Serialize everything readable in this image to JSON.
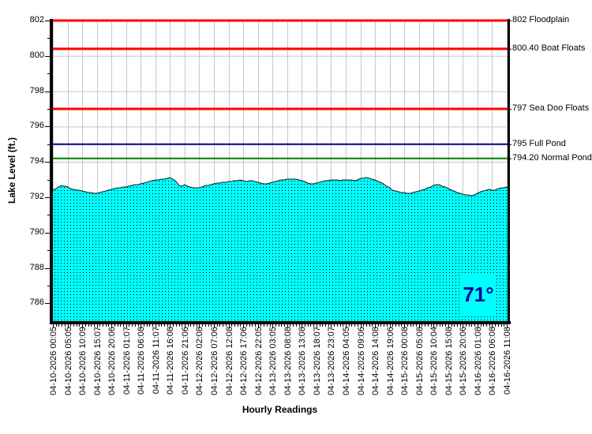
{
  "chart_data": {
    "type": "area",
    "title": "",
    "xlabel": "Hourly Readings",
    "ylabel": "Lake Level (ft.)",
    "ylim": [
      785,
      802
    ],
    "grid": true,
    "legend": "none",
    "x_total_hours": 155,
    "x_tick_labels": [
      "04-10-2026 00:05",
      "04-10-2026 05:05",
      "04-10-2026 10:09",
      "04-10-2026 15:07",
      "04-10-2026 20:06",
      "04-11-2026 01:07",
      "04-11-2026 06:08",
      "04-11-2026 11:07",
      "04-11-2026 16:08",
      "04-11-2026 21:06",
      "04-12-2026 02:08",
      "04-12-2026 07:06",
      "04-12-2026 12:08",
      "04-12-2026 17:06",
      "04-12-2026 22:05",
      "04-13-2026 03:05",
      "04-13-2026 08:08",
      "04-13-2026 13:08",
      "04-13-2026 18:07",
      "04-13-2026 23:07",
      "04-14-2026 04:05",
      "04-14-2026 09:06",
      "04-14-2026 14:08",
      "04-14-2026 19:06",
      "04-15-2026 00:08",
      "04-15-2026 05:08",
      "04-15-2026 10:04",
      "04-15-2026 15:08",
      "04-15-2026 20:06",
      "04-16-2026 01:08",
      "04-16-2026 06:08",
      "04-16-2026 11:08"
    ],
    "y_tick_values": [
      802,
      800,
      798,
      796,
      794,
      792,
      790,
      788,
      786
    ],
    "series": [
      {
        "name": "Lake Level (ft.)",
        "color": "#00FFFF",
        "pattern": "black-dots",
        "points": [
          [
            0,
            792.4
          ],
          [
            1.3,
            792.5
          ],
          [
            3,
            792.65
          ],
          [
            4.6,
            792.6
          ],
          [
            6.7,
            792.45
          ],
          [
            8.9,
            792.4
          ],
          [
            11.1,
            792.3
          ],
          [
            13.2,
            792.25
          ],
          [
            14.8,
            792.2
          ],
          [
            17,
            792.3
          ],
          [
            19.1,
            792.4
          ],
          [
            21.3,
            792.5
          ],
          [
            23.5,
            792.55
          ],
          [
            25.6,
            792.6
          ],
          [
            27.8,
            792.7
          ],
          [
            29.9,
            792.75
          ],
          [
            32.1,
            792.85
          ],
          [
            34.2,
            792.95
          ],
          [
            36.4,
            793.0
          ],
          [
            38.5,
            793.05
          ],
          [
            40.2,
            793.1
          ],
          [
            41.5,
            793.0
          ],
          [
            42.3,
            792.8
          ],
          [
            43.4,
            792.6
          ],
          [
            45,
            792.7
          ],
          [
            46.6,
            792.6
          ],
          [
            48.3,
            792.5
          ],
          [
            49.9,
            792.55
          ],
          [
            52,
            792.65
          ],
          [
            54.2,
            792.7
          ],
          [
            56.3,
            792.8
          ],
          [
            58.5,
            792.85
          ],
          [
            60.7,
            792.9
          ],
          [
            62.8,
            792.95
          ],
          [
            64.4,
            793.0
          ],
          [
            65.5,
            792.85
          ],
          [
            66.9,
            792.95
          ],
          [
            68.7,
            792.9
          ],
          [
            70.9,
            792.8
          ],
          [
            73.1,
            792.75
          ],
          [
            75.2,
            792.85
          ],
          [
            77.4,
            792.95
          ],
          [
            79.5,
            793.0
          ],
          [
            81.7,
            793.05
          ],
          [
            83.8,
            793.0
          ],
          [
            86,
            792.9
          ],
          [
            87.9,
            792.75
          ],
          [
            89.8,
            792.8
          ],
          [
            91.9,
            792.9
          ],
          [
            94.1,
            792.95
          ],
          [
            96.2,
            793.0
          ],
          [
            97.9,
            792.95
          ],
          [
            99.5,
            793.0
          ],
          [
            101.6,
            793.0
          ],
          [
            103.2,
            792.95
          ],
          [
            104.9,
            793.05
          ],
          [
            107,
            793.1
          ],
          [
            108.6,
            793.05
          ],
          [
            110.5,
            792.95
          ],
          [
            112.4,
            792.8
          ],
          [
            114.3,
            792.6
          ],
          [
            116.2,
            792.4
          ],
          [
            118.1,
            792.3
          ],
          [
            120,
            792.25
          ],
          [
            121.3,
            792.2
          ],
          [
            122.9,
            792.25
          ],
          [
            124.8,
            792.35
          ],
          [
            126.7,
            792.45
          ],
          [
            128.6,
            792.55
          ],
          [
            130.2,
            792.7
          ],
          [
            131.3,
            792.75
          ],
          [
            132.9,
            792.65
          ],
          [
            134.5,
            792.55
          ],
          [
            136.1,
            792.4
          ],
          [
            137.7,
            792.3
          ],
          [
            139.4,
            792.2
          ],
          [
            141,
            792.15
          ],
          [
            142.9,
            792.1
          ],
          [
            144.5,
            792.15
          ],
          [
            145.8,
            792.3
          ],
          [
            147.5,
            792.4
          ],
          [
            149.1,
            792.45
          ],
          [
            150.7,
            792.4
          ],
          [
            152.3,
            792.5
          ],
          [
            153.9,
            792.55
          ],
          [
            155,
            792.6
          ]
        ]
      }
    ],
    "reference_lines": [
      {
        "value": 802,
        "label": "802 Floodplain",
        "color": "#FF0000",
        "width": 3
      },
      {
        "value": 800.4,
        "label": "800.40 Boat Floats",
        "color": "#FF0000",
        "width": 3
      },
      {
        "value": 797,
        "label": "797 Sea Doo Floats",
        "color": "#FF0000",
        "width": 3
      },
      {
        "value": 795,
        "label": "795 Full Pond",
        "color": "#000080",
        "width": 2
      },
      {
        "value": 794.2,
        "label": "794.20 Normal Pond",
        "color": "#008000",
        "width": 2
      }
    ],
    "grid_color": "#C6C6C6",
    "temperature_badge": {
      "text": "71°",
      "bg": "#00FFFF",
      "fg": "#000099"
    }
  }
}
